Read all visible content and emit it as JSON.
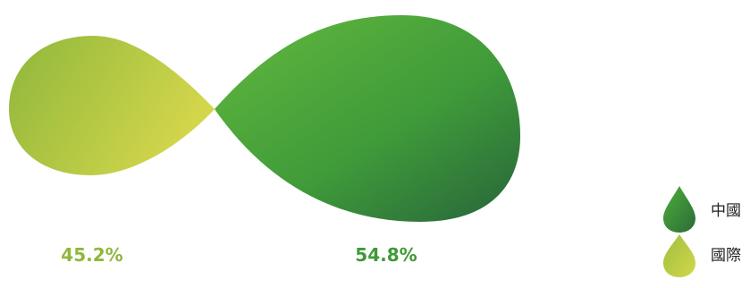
{
  "chart_data": {
    "type": "pie",
    "title": "",
    "series": [
      {
        "name": "國際",
        "value": 45.2,
        "label": "45.2%",
        "color": "#c8d24a",
        "color_dark": "#8fb73c"
      },
      {
        "name": "中國",
        "value": 54.8,
        "label": "54.8%",
        "color": "#4ba63a",
        "color_dark": "#2a6b3a"
      }
    ],
    "legend": {
      "placement": "bottom-right",
      "order": [
        "中國",
        "國際"
      ],
      "marker": "droplet-icon"
    }
  }
}
